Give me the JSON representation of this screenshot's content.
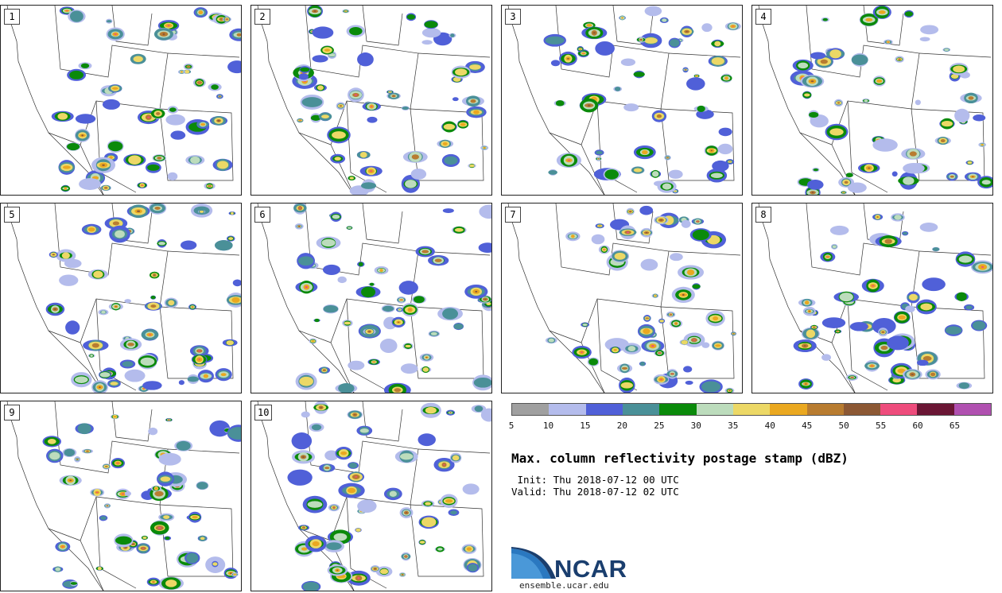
{
  "panels": [
    {
      "label": "1"
    },
    {
      "label": "2"
    },
    {
      "label": "3"
    },
    {
      "label": "4"
    },
    {
      "label": "5"
    },
    {
      "label": "6"
    },
    {
      "label": "7"
    },
    {
      "label": "8"
    },
    {
      "label": "9"
    },
    {
      "label": "10"
    }
  ],
  "colorbar": {
    "colors": [
      "#a0a0a0",
      "#b4bcec",
      "#5060d8",
      "#4a9098",
      "#0a8a0a",
      "#bcdcbc",
      "#ecd866",
      "#eaa820",
      "#b87c30",
      "#8c5834",
      "#ee4c7c",
      "#6a1634",
      "#b050b0"
    ],
    "ticks": [
      "5",
      "10",
      "15",
      "20",
      "25",
      "30",
      "35",
      "40",
      "45",
      "50",
      "55",
      "60",
      "65"
    ]
  },
  "title": "Max. column reflectivity postage stamp (dBZ)",
  "init_line": " Init: Thu 2018-07-12 00 UTC",
  "valid_line": "Valid: Thu 2018-07-12 02 UTC",
  "logo": {
    "word": "NCAR",
    "url": "ensemble.ucar.edu"
  }
}
